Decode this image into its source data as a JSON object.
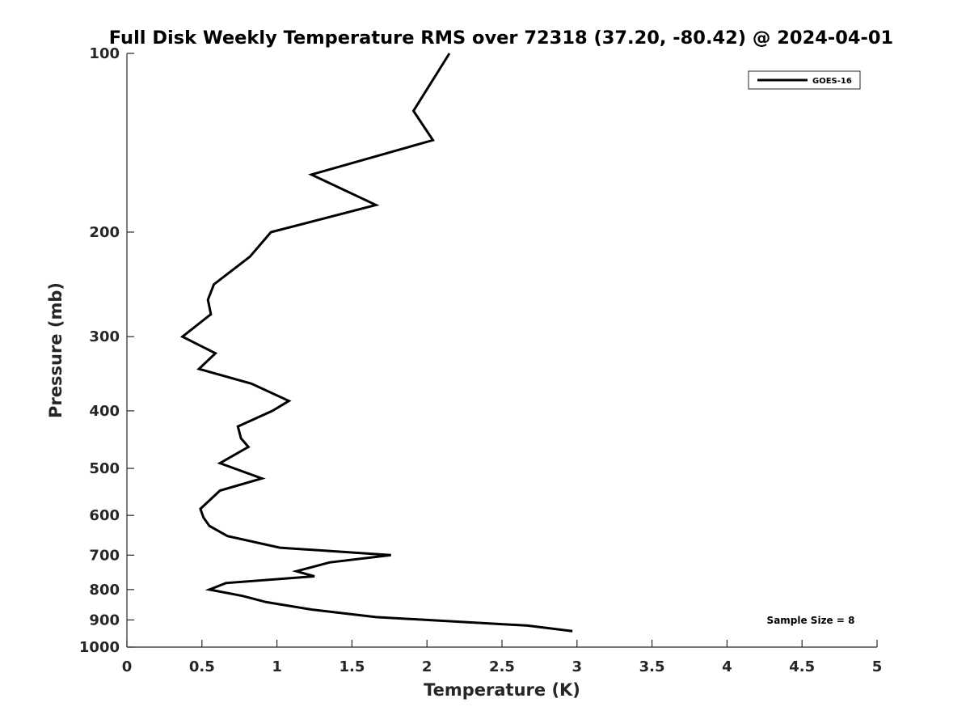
{
  "chart_data": {
    "type": "line",
    "title": "Full Disk Weekly Temperature RMS over 72318 (37.20, -80.42) @ 2024-04-01",
    "xlabel": "Temperature (K)",
    "ylabel": "Pressure (mb)",
    "xlim": [
      0,
      5
    ],
    "ylim": [
      100,
      1000
    ],
    "yscale": "log",
    "y_reversed": true,
    "xticks": [
      0,
      0.5,
      1,
      1.5,
      2,
      2.5,
      3,
      3.5,
      4,
      4.5,
      5
    ],
    "xtick_labels": [
      "0",
      "0.5",
      "1",
      "1.5",
      "2",
      "2.5",
      "3",
      "3.5",
      "4",
      "4.5",
      "5"
    ],
    "yticks": [
      100,
      200,
      300,
      400,
      500,
      600,
      700,
      800,
      900,
      1000
    ],
    "ytick_labels": [
      "100",
      "200",
      "300",
      "400",
      "500",
      "600",
      "700",
      "800",
      "900",
      "1000"
    ],
    "grid": false,
    "legend_position": "top-right",
    "series": [
      {
        "name": "GOES-16",
        "color": "#000000",
        "x": [
          2.15,
          1.91,
          2.04,
          1.23,
          1.66,
          0.96,
          0.82,
          0.58,
          0.54,
          0.56,
          0.37,
          0.59,
          0.48,
          0.83,
          1.08,
          0.97,
          0.74,
          0.76,
          0.81,
          0.62,
          0.9,
          0.62,
          0.49,
          0.51,
          0.55,
          0.67,
          1.02,
          1.76,
          1.35,
          1.13,
          1.25,
          0.66,
          0.55,
          0.77,
          0.93,
          1.24,
          1.66,
          2.67,
          2.97
        ],
        "y": [
          100,
          125,
          140,
          160,
          180,
          200,
          220,
          245,
          260,
          275,
          300,
          320,
          340,
          360,
          385,
          400,
          425,
          445,
          460,
          490,
          520,
          545,
          585,
          605,
          625,
          650,
          680,
          700,
          720,
          745,
          760,
          780,
          800,
          820,
          840,
          865,
          890,
          920,
          940
        ]
      }
    ],
    "annotations": [
      "Sample Size = 8"
    ]
  }
}
